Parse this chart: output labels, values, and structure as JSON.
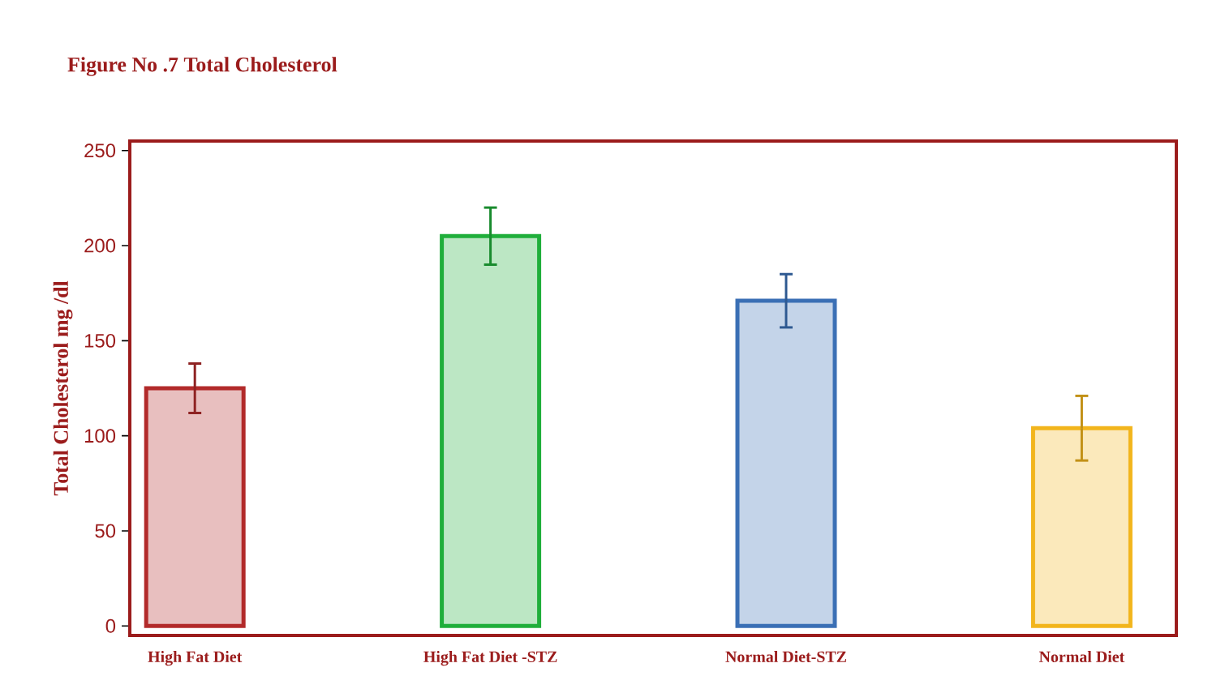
{
  "chart_data": {
    "type": "bar",
    "title": "Figure No .7 Total Cholesterol",
    "ylabel": "Total Cholesterol mg /dl",
    "categories": [
      "High Fat Diet",
      "High Fat Diet -STZ",
      "Normal Diet-STZ",
      "Normal Diet"
    ],
    "values": [
      125,
      205,
      171,
      104
    ],
    "errors": [
      13,
      15,
      14,
      17
    ],
    "colors": [
      "#b22a2a",
      "#1fae3a",
      "#3a6fb5",
      "#f2b51c"
    ],
    "ylim": [
      -5,
      255
    ],
    "yticks": [
      0,
      50,
      100,
      150,
      200,
      250
    ],
    "grid": false
  }
}
